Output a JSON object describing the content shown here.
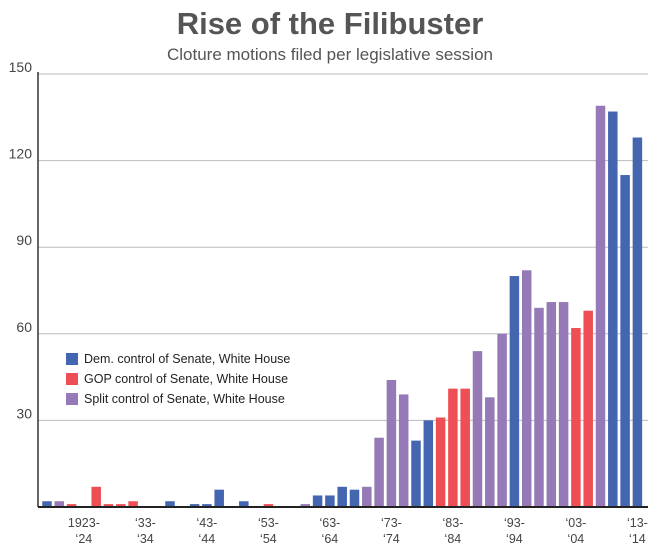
{
  "chart_data": {
    "type": "bar",
    "title": "Rise of the Filibuster",
    "subtitle": "Cloture motions filed per legislative session",
    "xlabel": "",
    "ylabel": "",
    "ylim": [
      0,
      150
    ],
    "yticks": [
      30,
      60,
      90,
      120,
      150
    ],
    "grid": true,
    "legend_position": "middle-left",
    "categories": [
      "1917-18",
      "1919-20",
      "1921-22",
      "1923-24",
      "1925-26",
      "1927-28",
      "1929-30",
      "1931-32",
      "1933-34",
      "1935-36",
      "1937-38",
      "1939-40",
      "1941-42",
      "1943-44",
      "1945-46",
      "1947-48",
      "1949-50",
      "1951-52",
      "1953-54",
      "1955-56",
      "1957-58",
      "1959-60",
      "1961-62",
      "1963-64",
      "1965-66",
      "1967-68",
      "1969-70",
      "1971-72",
      "1973-74",
      "1975-76",
      "1977-78",
      "1979-80",
      "1981-82",
      "1983-84",
      "1985-86",
      "1987-88",
      "1989-90",
      "1991-92",
      "1993-94",
      "1995-96",
      "1997-98",
      "1999-00",
      "2001-02",
      "2003-04",
      "2005-06",
      "2007-08",
      "2009-10",
      "2011-12",
      "2013-14"
    ],
    "values": [
      2,
      2,
      1,
      0,
      7,
      1,
      1,
      2,
      0,
      0,
      2,
      0,
      1,
      1,
      6,
      0,
      2,
      0,
      1,
      0,
      0,
      1,
      4,
      4,
      7,
      6,
      7,
      24,
      44,
      39,
      23,
      30,
      31,
      41,
      41,
      54,
      38,
      60,
      80,
      82,
      69,
      71,
      71,
      62,
      68,
      139,
      137,
      115,
      128
    ],
    "control": [
      "dem",
      "split",
      "gop",
      "gop",
      "gop",
      "gop",
      "gop",
      "gop",
      "dem",
      "dem",
      "dem",
      "dem",
      "dem",
      "dem",
      "dem",
      "split",
      "dem",
      "dem",
      "gop",
      "split",
      "split",
      "split",
      "dem",
      "dem",
      "dem",
      "dem",
      "split",
      "split",
      "split",
      "split",
      "dem",
      "dem",
      "gop",
      "gop",
      "gop",
      "split",
      "split",
      "split",
      "dem",
      "split",
      "split",
      "split",
      "split",
      "gop",
      "gop",
      "split",
      "dem",
      "dem",
      "dem"
    ],
    "xtick_labels": [
      {
        "index": 3,
        "line1": "1923-",
        "line2": "‘24"
      },
      {
        "index": 8,
        "line1": "‘33-",
        "line2": "‘34"
      },
      {
        "index": 13,
        "line1": "‘43-",
        "line2": "‘44"
      },
      {
        "index": 18,
        "line1": "‘53-",
        "line2": "‘54"
      },
      {
        "index": 23,
        "line1": "‘63-",
        "line2": "‘64"
      },
      {
        "index": 28,
        "line1": "‘73-",
        "line2": "‘74"
      },
      {
        "index": 33,
        "line1": "‘83-",
        "line2": "‘84"
      },
      {
        "index": 38,
        "line1": "‘93-",
        "line2": "‘94"
      },
      {
        "index": 43,
        "line1": "‘03-",
        "line2": "‘04"
      },
      {
        "index": 48,
        "line1": "‘13-",
        "line2": "‘14"
      }
    ],
    "series": [
      {
        "key": "dem",
        "name": "Dem. control of Senate, White House",
        "color": "#4466b0"
      },
      {
        "key": "gop",
        "name": "GOP control of Senate, White House",
        "color": "#ee4f55"
      },
      {
        "key": "split",
        "name": "Split control of Senate, White House",
        "color": "#967ab8"
      }
    ]
  }
}
